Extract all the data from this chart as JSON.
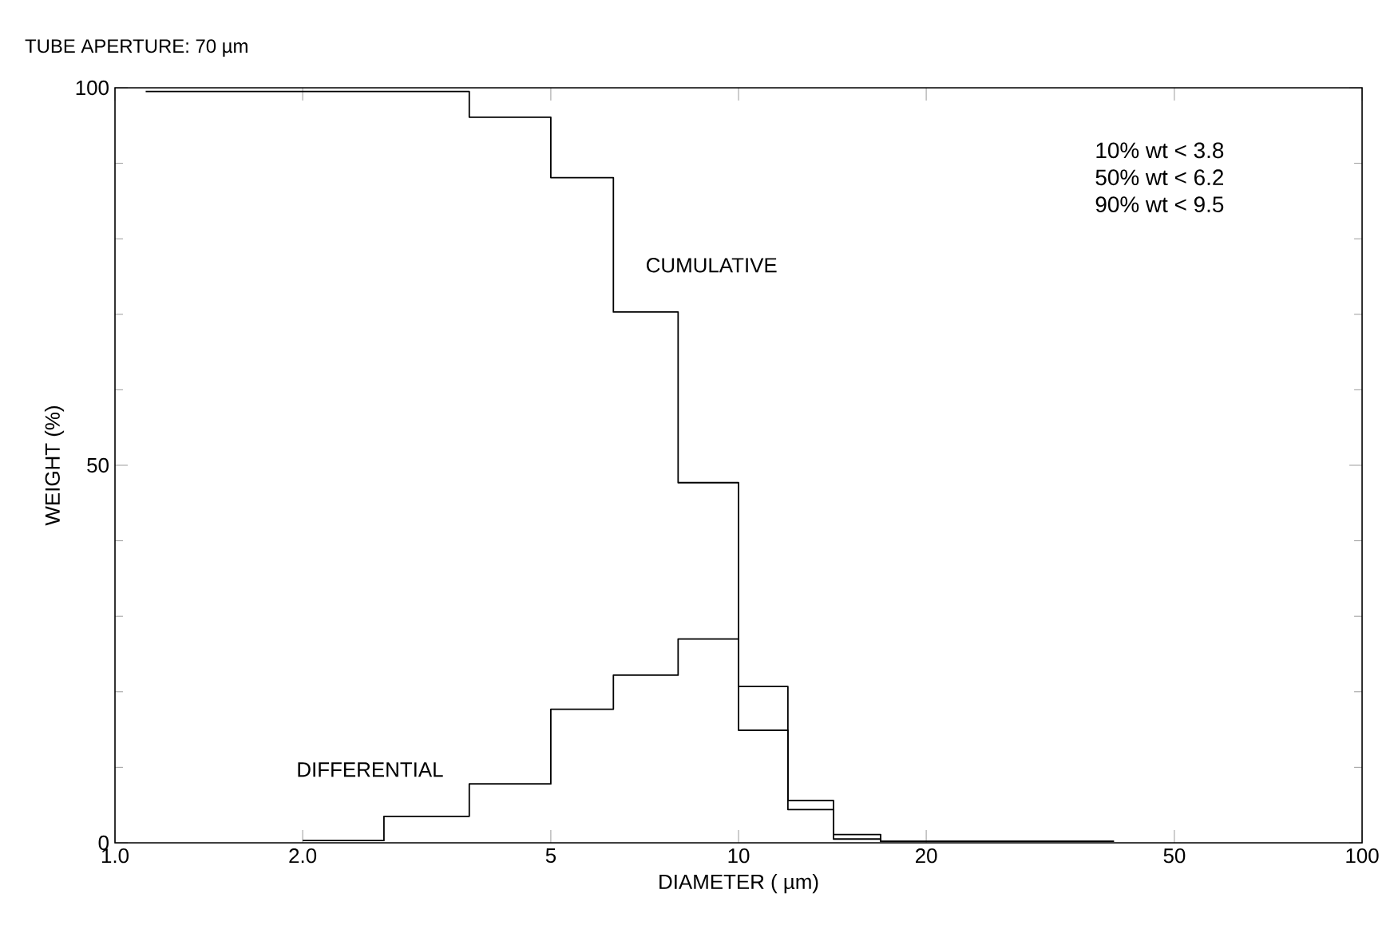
{
  "chart_data": {
    "type": "step",
    "title": "TUBE APERTURE: 70 µm",
    "xlabel": "DIAMETER ( µm)",
    "ylabel": "WEIGHT (%)",
    "series": [
      {
        "name": "CUMULATIVE",
        "color": "#000000",
        "x": [
          1.12,
          3.7,
          5,
          6.3,
          8,
          10,
          12,
          14.2,
          16.9,
          40
        ],
        "values": [
          99.5,
          96.1,
          88.1,
          70.3,
          47.7,
          14.9,
          4.4,
          0.5,
          0.2,
          0.2
        ]
      },
      {
        "name": "DIFFERENTIAL",
        "color": "#000000",
        "x": [
          2.0,
          2.7,
          3.7,
          5,
          6.3,
          8,
          10,
          12,
          14.2,
          16.9,
          40
        ],
        "values": [
          0.3,
          3.5,
          7.8,
          17.7,
          22.2,
          27.0,
          20.7,
          5.6,
          1.1,
          0.2,
          0.2
        ]
      }
    ],
    "annotations": [
      "10% wt < 3.8",
      "50% wt < 6.2",
      "90% wt < 9.5"
    ],
    "log": "x",
    "xlim": [
      1,
      100
    ],
    "ylim": [
      0,
      100
    ],
    "xticks": [
      {
        "value": 1,
        "label": "1.0"
      },
      {
        "value": 2,
        "label": "2.0"
      },
      5,
      10,
      20,
      50,
      100
    ],
    "yticks": [
      0,
      50,
      100
    ],
    "legend": false,
    "grid": false,
    "marker": "none",
    "line_style": "solid"
  }
}
